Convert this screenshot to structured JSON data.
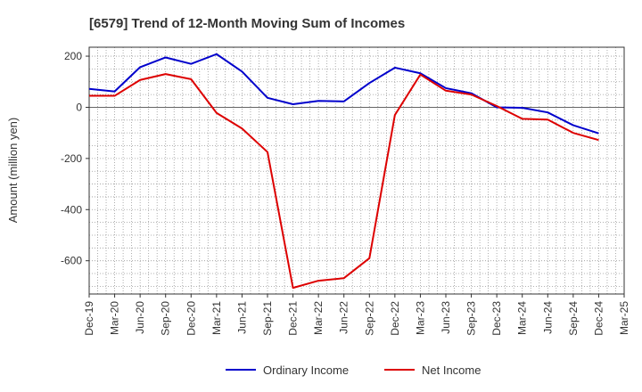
{
  "chart_data": {
    "type": "line",
    "title": "[6579]  Trend of 12-Month Moving Sum of Incomes",
    "xlabel": "",
    "ylabel": "Amount (million yen)",
    "x": [
      "Dec-19",
      "Mar-20",
      "Jun-20",
      "Sep-20",
      "Dec-20",
      "Mar-21",
      "Jun-21",
      "Sep-21",
      "Dec-21",
      "Mar-22",
      "Jun-22",
      "Sep-22",
      "Dec-22",
      "Mar-23",
      "Jun-23",
      "Sep-23",
      "Dec-23",
      "Mar-24",
      "Jun-24",
      "Sep-24",
      "Dec-24",
      "Mar-25"
    ],
    "yticks": [
      200,
      0,
      -200,
      -400,
      -600
    ],
    "ylim": [
      -730,
      235
    ],
    "grid": true,
    "legend_position": "bottom",
    "series": [
      {
        "name": "Ordinary Income",
        "color": "#0000cc",
        "values": [
          72,
          62,
          157,
          195,
          170,
          208,
          140,
          37,
          12,
          25,
          23,
          95,
          155,
          133,
          75,
          55,
          0,
          -2,
          -20,
          -70,
          -102,
          null
        ]
      },
      {
        "name": "Net Income",
        "color": "#dd0000",
        "values": [
          45,
          45,
          107,
          130,
          110,
          -22,
          -83,
          -175,
          -706,
          -678,
          -668,
          -590,
          -30,
          128,
          65,
          50,
          5,
          -45,
          -48,
          -100,
          -128,
          null
        ]
      }
    ]
  }
}
